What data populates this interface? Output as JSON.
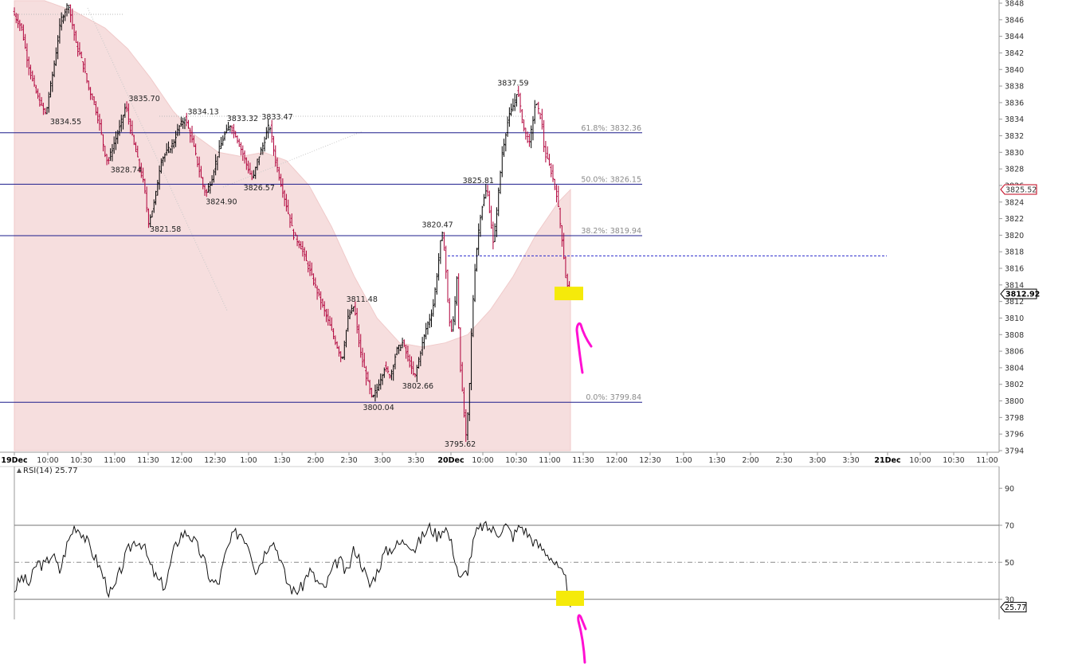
{
  "chart_data": [
    {
      "type": "line",
      "panel": "price",
      "symbol_price_tag": "3812.92",
      "reference_price_tag": "3825.52",
      "y_ticks": [
        3794,
        3796,
        3798,
        3800,
        3802,
        3804,
        3806,
        3808,
        3810,
        3812,
        3814,
        3816,
        3818,
        3820,
        3822,
        3824,
        3826,
        3828,
        3830,
        3832,
        3834,
        3836,
        3838,
        3840,
        3842,
        3844,
        3846,
        3848
      ],
      "ylim": [
        3793.8,
        3848.3
      ],
      "x_ticks": [
        {
          "label": "19Dec",
          "bold": true
        },
        {
          "label": "10:00"
        },
        {
          "label": "10:30"
        },
        {
          "label": "11:00"
        },
        {
          "label": "11:30"
        },
        {
          "label": "12:00"
        },
        {
          "label": "12:30"
        },
        {
          "label": "1:00"
        },
        {
          "label": "1:30"
        },
        {
          "label": "2:00"
        },
        {
          "label": "2:30"
        },
        {
          "label": "3:00"
        },
        {
          "label": "3:30"
        },
        {
          "label": "20Dec",
          "bold": true
        },
        {
          "label": "10:00"
        },
        {
          "label": "10:30"
        },
        {
          "label": "11:00"
        },
        {
          "label": "11:30"
        },
        {
          "label": "12:00"
        },
        {
          "label": "12:30"
        },
        {
          "label": "1:00"
        },
        {
          "label": "1:30"
        },
        {
          "label": "2:00"
        },
        {
          "label": "2:30"
        },
        {
          "label": "3:00"
        },
        {
          "label": "3:30"
        },
        {
          "label": "21Dec",
          "bold": true
        },
        {
          "label": "10:00"
        },
        {
          "label": "10:30"
        },
        {
          "label": "11:00"
        }
      ],
      "fib_levels": [
        {
          "label": "61.8%: 3832.36",
          "value": 3832.36
        },
        {
          "label": "50.0%: 3826.15",
          "value": 3826.15
        },
        {
          "label": "38.2%: 3819.94",
          "value": 3819.94
        },
        {
          "label": "0.0%: 3799.84",
          "value": 3799.84
        }
      ],
      "dashed_level": 3817.5,
      "price_path": [
        [
          0,
          3847
        ],
        [
          6,
          3845
        ],
        [
          10,
          3841
        ],
        [
          14,
          3838
        ],
        [
          18,
          3836
        ],
        [
          22,
          3834.55
        ],
        [
          27,
          3840
        ],
        [
          32,
          3846
        ],
        [
          37,
          3848
        ],
        [
          42,
          3843
        ],
        [
          46,
          3841
        ],
        [
          50,
          3838
        ],
        [
          54,
          3836
        ],
        [
          58,
          3833
        ],
        [
          61,
          3830
        ],
        [
          63,
          3828.74
        ],
        [
          67,
          3831
        ],
        [
          71,
          3833
        ],
        [
          75,
          3835.7
        ],
        [
          79,
          3832
        ],
        [
          83,
          3829
        ],
        [
          87,
          3826
        ],
        [
          90,
          3821.58
        ],
        [
          94,
          3824
        ],
        [
          98,
          3829
        ],
        [
          102,
          3830
        ],
        [
          106,
          3831
        ],
        [
          110,
          3833
        ],
        [
          114,
          3834.13
        ],
        [
          118,
          3832
        ],
        [
          122,
          3829
        ],
        [
          126,
          3826
        ],
        [
          128,
          3824.9
        ],
        [
          132,
          3827
        ],
        [
          136,
          3830
        ],
        [
          140,
          3832
        ],
        [
          144,
          3833.32
        ],
        [
          148,
          3832
        ],
        [
          152,
          3830
        ],
        [
          156,
          3828
        ],
        [
          159,
          3826.57
        ],
        [
          162,
          3829
        ],
        [
          166,
          3831
        ],
        [
          170,
          3833.47
        ],
        [
          174,
          3829
        ],
        [
          178,
          3826
        ],
        [
          182,
          3823
        ],
        [
          186,
          3820
        ],
        [
          190,
          3819
        ],
        [
          194,
          3817
        ],
        [
          198,
          3815
        ],
        [
          202,
          3813
        ],
        [
          206,
          3811
        ],
        [
          210,
          3809
        ],
        [
          214,
          3807
        ],
        [
          218,
          3805
        ],
        [
          222,
          3810
        ],
        [
          226,
          3811.48
        ],
        [
          230,
          3806
        ],
        [
          234,
          3803
        ],
        [
          238,
          3800.04
        ],
        [
          242,
          3802
        ],
        [
          246,
          3804
        ],
        [
          250,
          3803
        ],
        [
          254,
          3806
        ],
        [
          258,
          3807
        ],
        [
          262,
          3805
        ],
        [
          266,
          3802.66
        ],
        [
          270,
          3806
        ],
        [
          274,
          3809
        ],
        [
          278,
          3811
        ],
        [
          282,
          3817
        ],
        [
          284,
          3820.47
        ],
        [
          286,
          3818
        ],
        [
          288,
          3812
        ],
        [
          290,
          3808
        ],
        [
          292,
          3810
        ],
        [
          294,
          3815
        ],
        [
          296,
          3805
        ],
        [
          298,
          3800
        ],
        [
          300,
          3795.62
        ],
        [
          302,
          3800
        ],
        [
          304,
          3810
        ],
        [
          306,
          3816
        ],
        [
          308,
          3820
        ],
        [
          310,
          3823
        ],
        [
          314,
          3825.81
        ],
        [
          318,
          3819
        ],
        [
          320,
          3822
        ],
        [
          324,
          3830
        ],
        [
          328,
          3834
        ],
        [
          332,
          3836
        ],
        [
          334,
          3837.59
        ],
        [
          338,
          3833
        ],
        [
          342,
          3831
        ],
        [
          346,
          3836
        ],
        [
          350,
          3834
        ],
        [
          352,
          3830
        ],
        [
          356,
          3828
        ],
        [
          360,
          3825
        ],
        [
          362,
          3822
        ],
        [
          364,
          3819
        ],
        [
          366,
          3815
        ],
        [
          368,
          3812.92
        ]
      ],
      "band_upper": [
        [
          0,
          3848.3
        ],
        [
          20,
          3848.3
        ],
        [
          40,
          3847
        ],
        [
          60,
          3845
        ],
        [
          75,
          3842.5
        ],
        [
          90,
          3839
        ],
        [
          105,
          3835
        ],
        [
          120,
          3832
        ],
        [
          135,
          3830
        ],
        [
          150,
          3829.5
        ],
        [
          165,
          3830
        ],
        [
          180,
          3829
        ],
        [
          195,
          3826
        ],
        [
          210,
          3821
        ],
        [
          225,
          3815
        ],
        [
          240,
          3810
        ],
        [
          255,
          3807
        ],
        [
          270,
          3806.5
        ],
        [
          285,
          3807
        ],
        [
          300,
          3808
        ],
        [
          315,
          3811
        ],
        [
          330,
          3815
        ],
        [
          345,
          3820
        ],
        [
          360,
          3824
        ],
        [
          368,
          3825.5
        ]
      ],
      "band_lower": [
        [
          0,
          3793.8
        ],
        [
          368,
          3793.8
        ]
      ],
      "price_labels": [
        {
          "text": "3834.55",
          "t": 34,
          "v": 3834.55,
          "pos": "below"
        },
        {
          "text": "3835.70",
          "t": 86,
          "v": 3835.7,
          "pos": "above"
        },
        {
          "text": "3828.74",
          "t": 74,
          "v": 3828.74,
          "pos": "below"
        },
        {
          "text": "3821.58",
          "t": 100,
          "v": 3821.58,
          "pos": "below"
        },
        {
          "text": "3834.13",
          "t": 125,
          "v": 3834.13,
          "pos": "above"
        },
        {
          "text": "3824.90",
          "t": 137,
          "v": 3824.9,
          "pos": "below"
        },
        {
          "text": "3833.32",
          "t": 151,
          "v": 3833.32,
          "pos": "above"
        },
        {
          "text": "3826.57",
          "t": 162,
          "v": 3826.57,
          "pos": "below"
        },
        {
          "text": "3833.47",
          "t": 174,
          "v": 3833.47,
          "pos": "above"
        },
        {
          "text": "3811.48",
          "t": 230,
          "v": 3811.48,
          "pos": "above"
        },
        {
          "text": "3800.04",
          "t": 241,
          "v": 3800.04,
          "pos": "below"
        },
        {
          "text": "3802.66",
          "t": 267,
          "v": 3802.66,
          "pos": "below"
        },
        {
          "text": "3820.47",
          "t": 280,
          "v": 3820.47,
          "pos": "above"
        },
        {
          "text": "3795.62",
          "t": 295,
          "v": 3795.62,
          "pos": "below"
        },
        {
          "text": "3825.81",
          "t": 307,
          "v": 3825.81,
          "pos": "above"
        },
        {
          "text": "3837.59",
          "t": 330,
          "v": 3837.59,
          "pos": "above"
        }
      ]
    },
    {
      "type": "line",
      "panel": "rsi",
      "title": "RSI(14) 25.77",
      "current_tag": "25.77",
      "ylim": [
        20,
        100
      ],
      "y_ticks": [
        30,
        50,
        70,
        90
      ],
      "levels": [
        70,
        50,
        30
      ],
      "rsi_path": [
        [
          0,
          35
        ],
        [
          5,
          42
        ],
        [
          10,
          38
        ],
        [
          15,
          50
        ],
        [
          20,
          48
        ],
        [
          25,
          55
        ],
        [
          30,
          45
        ],
        [
          35,
          60
        ],
        [
          40,
          70
        ],
        [
          45,
          66
        ],
        [
          50,
          58
        ],
        [
          55,
          50
        ],
        [
          60,
          40
        ],
        [
          63,
          33
        ],
        [
          66,
          35
        ],
        [
          70,
          45
        ],
        [
          75,
          56
        ],
        [
          80,
          62
        ],
        [
          85,
          60
        ],
        [
          90,
          48
        ],
        [
          95,
          40
        ],
        [
          100,
          37
        ],
        [
          105,
          55
        ],
        [
          110,
          65
        ],
        [
          115,
          66
        ],
        [
          120,
          60
        ],
        [
          125,
          52
        ],
        [
          130,
          40
        ],
        [
          135,
          38
        ],
        [
          140,
          55
        ],
        [
          145,
          65
        ],
        [
          150,
          66
        ],
        [
          155,
          60
        ],
        [
          160,
          45
        ],
        [
          165,
          54
        ],
        [
          170,
          63
        ],
        [
          175,
          55
        ],
        [
          180,
          40
        ],
        [
          185,
          34
        ],
        [
          190,
          36
        ],
        [
          195,
          46
        ],
        [
          200,
          40
        ],
        [
          205,
          35
        ],
        [
          210,
          45
        ],
        [
          215,
          52
        ],
        [
          220,
          43
        ],
        [
          225,
          58
        ],
        [
          230,
          49
        ],
        [
          235,
          37
        ],
        [
          240,
          45
        ],
        [
          245,
          55
        ],
        [
          250,
          58
        ],
        [
          255,
          60
        ],
        [
          260,
          62
        ],
        [
          265,
          57
        ],
        [
          270,
          64
        ],
        [
          275,
          69
        ],
        [
          280,
          64
        ],
        [
          285,
          70
        ],
        [
          290,
          58
        ],
        [
          295,
          40
        ],
        [
          300,
          46
        ],
        [
          305,
          65
        ],
        [
          310,
          70
        ],
        [
          315,
          68
        ],
        [
          320,
          66
        ],
        [
          325,
          70
        ],
        [
          330,
          64
        ],
        [
          335,
          70
        ],
        [
          340,
          65
        ],
        [
          345,
          60
        ],
        [
          350,
          57
        ],
        [
          355,
          53
        ],
        [
          360,
          46
        ],
        [
          365,
          40
        ],
        [
          368,
          25.77
        ]
      ]
    }
  ],
  "icons": {
    "rsi_toggle": "triangle-icon",
    "annotation_arrow": "hand-drawn-arrow-icon"
  },
  "colors": {
    "band_fill": "#f6dede",
    "up_bar": "#000000",
    "down_bar": "#b0003a",
    "fib_line": "#1c1c8c",
    "highlight": "#f5ea0a",
    "arrow": "#ff10d2",
    "rsi_below_fill": "#8a6a62"
  }
}
